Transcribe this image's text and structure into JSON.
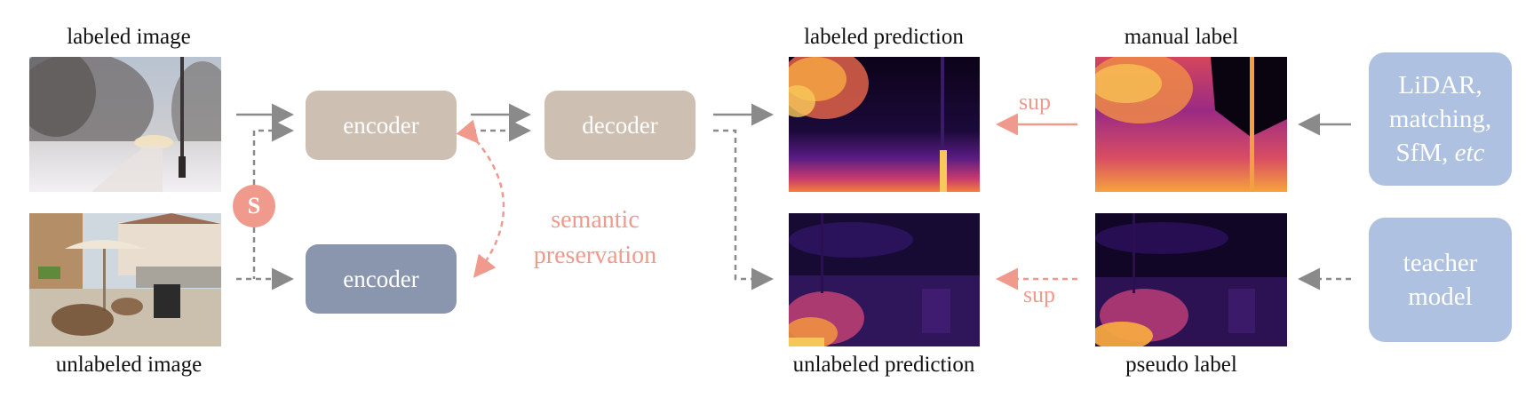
{
  "labels": {
    "labeled_image": "labeled image",
    "unlabeled_image": "unlabeled image",
    "labeled_prediction": "labeled prediction",
    "unlabeled_prediction": "unlabeled prediction",
    "manual_label": "manual label",
    "pseudo_label": "pseudo label"
  },
  "blocks": {
    "encoder_top": "encoder",
    "decoder": "decoder",
    "encoder_bottom": "encoder"
  },
  "sources": {
    "line1": "LiDAR,",
    "line2": "matching,",
    "line3_prefix": "SfM, ",
    "line3_italic": "etc",
    "teacher_line1": "teacher",
    "teacher_line2": "model"
  },
  "annotations": {
    "s_badge": "S",
    "semantic_line1": "semantic",
    "semantic_line2": "preservation",
    "sup_top": "sup",
    "sup_bottom": "sup"
  },
  "colors": {
    "accent_pink": "#ef9a8d",
    "encoder_beige": "#cdbfb2",
    "encoder_slate": "#8a96ad",
    "source_blue": "#aec1e0",
    "arrow_gray": "#8a8a8a"
  }
}
